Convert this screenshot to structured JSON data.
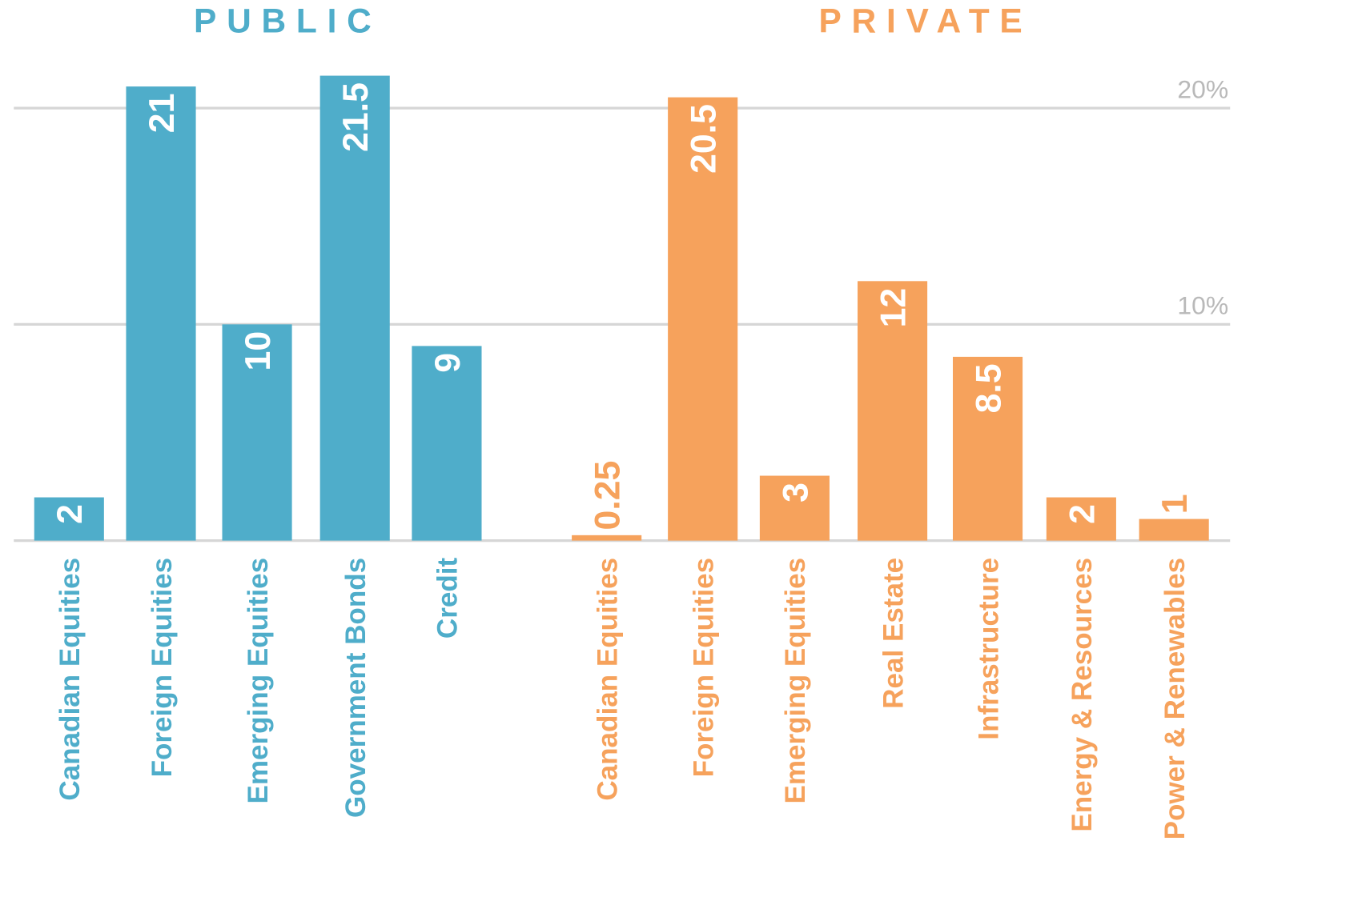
{
  "chart_data": {
    "type": "bar",
    "ylim": [
      0,
      25
    ],
    "yticks": [
      {
        "value": 10,
        "label": "10%"
      },
      {
        "value": 20,
        "label": "20%"
      }
    ],
    "grid": true,
    "groups": [
      {
        "name": "PUBLIC",
        "color": "#4fadca",
        "categories": [
          "Canadian Equities",
          "Foreign Equities",
          "Emerging Equities",
          "Government Bonds",
          "Credit"
        ],
        "values": [
          2,
          21,
          10,
          21.5,
          9
        ]
      },
      {
        "name": "PRIVATE",
        "color": "#f6a25c",
        "categories": [
          "Canadian Equities",
          "Foreign Equities",
          "Emerging Equities",
          "Real Estate",
          "Infrastructure",
          "Energy & Resources",
          "Power & Renewables"
        ],
        "values": [
          0.25,
          20.5,
          3,
          12,
          8.5,
          2,
          1
        ]
      }
    ]
  }
}
